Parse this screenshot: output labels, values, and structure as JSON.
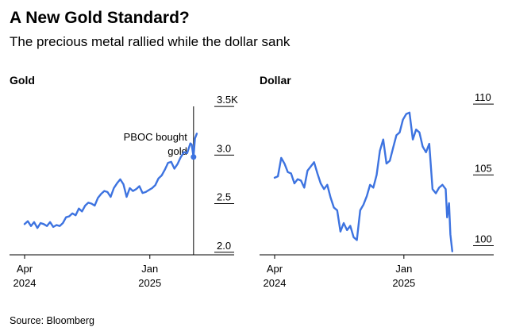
{
  "header": {
    "title": "A New Gold Standard?",
    "subtitle": "The precious metal rallied while the dollar sank"
  },
  "source": "Source: Bloomberg",
  "colors": {
    "line": "#3d73e0",
    "axis": "#000000",
    "text": "#000000"
  },
  "chart_data": [
    {
      "type": "line",
      "title": "Gold",
      "x_ticks": [
        {
          "date": "2024-04-01",
          "label": [
            "Apr",
            "2024"
          ]
        },
        {
          "date": "2025-01-01",
          "label": [
            "Jan",
            "2025"
          ]
        }
      ],
      "y_ticks": [
        {
          "value": 2.0,
          "label": "2.0"
        },
        {
          "value": 2.5,
          "label": "2.5"
        },
        {
          "value": 3.0,
          "label": "3.0"
        },
        {
          "value": 3.5,
          "label": "3.5K"
        }
      ],
      "xlim": [
        "2024-04-01",
        "2025-04-16"
      ],
      "ylim": [
        1.9,
        3.55
      ],
      "annotation": {
        "date": "2025-04-07",
        "value": 2.98,
        "lines": [
          "PBOC bought",
          "gold"
        ]
      },
      "series": [
        {
          "points": [
            [
              "2024-04-01",
              2.29
            ],
            [
              "2024-04-08",
              2.32
            ],
            [
              "2024-04-15",
              2.27
            ],
            [
              "2024-04-22",
              2.31
            ],
            [
              "2024-04-29",
              2.25
            ],
            [
              "2024-05-06",
              2.3
            ],
            [
              "2024-05-13",
              2.29
            ],
            [
              "2024-05-20",
              2.27
            ],
            [
              "2024-05-27",
              2.31
            ],
            [
              "2024-06-03",
              2.26
            ],
            [
              "2024-06-10",
              2.28
            ],
            [
              "2024-06-17",
              2.27
            ],
            [
              "2024-06-24",
              2.3
            ],
            [
              "2024-07-01",
              2.36
            ],
            [
              "2024-07-08",
              2.37
            ],
            [
              "2024-07-15",
              2.4
            ],
            [
              "2024-07-22",
              2.38
            ],
            [
              "2024-07-29",
              2.45
            ],
            [
              "2024-08-05",
              2.42
            ],
            [
              "2024-08-12",
              2.48
            ],
            [
              "2024-08-19",
              2.51
            ],
            [
              "2024-08-26",
              2.5
            ],
            [
              "2024-09-02",
              2.48
            ],
            [
              "2024-09-09",
              2.56
            ],
            [
              "2024-09-16",
              2.6
            ],
            [
              "2024-09-23",
              2.63
            ],
            [
              "2024-09-30",
              2.62
            ],
            [
              "2024-10-07",
              2.57
            ],
            [
              "2024-10-14",
              2.66
            ],
            [
              "2024-10-21",
              2.71
            ],
            [
              "2024-10-28",
              2.75
            ],
            [
              "2024-11-04",
              2.7
            ],
            [
              "2024-11-11",
              2.57
            ],
            [
              "2024-11-18",
              2.66
            ],
            [
              "2024-11-25",
              2.63
            ],
            [
              "2024-12-02",
              2.65
            ],
            [
              "2024-12-09",
              2.68
            ],
            [
              "2024-12-16",
              2.61
            ],
            [
              "2024-12-23",
              2.62
            ],
            [
              "2024-12-30",
              2.64
            ],
            [
              "2025-01-06",
              2.66
            ],
            [
              "2025-01-13",
              2.69
            ],
            [
              "2025-01-20",
              2.76
            ],
            [
              "2025-01-27",
              2.79
            ],
            [
              "2025-02-03",
              2.85
            ],
            [
              "2025-02-10",
              2.92
            ],
            [
              "2025-02-17",
              2.93
            ],
            [
              "2025-02-24",
              2.86
            ],
            [
              "2025-03-03",
              2.91
            ],
            [
              "2025-03-10",
              2.98
            ],
            [
              "2025-03-17",
              3.03
            ],
            [
              "2025-03-24",
              3.02
            ],
            [
              "2025-03-31",
              3.12
            ],
            [
              "2025-04-03",
              3.11
            ],
            [
              "2025-04-07",
              2.98
            ],
            [
              "2025-04-10",
              3.17
            ],
            [
              "2025-04-14",
              3.22
            ]
          ]
        }
      ]
    },
    {
      "type": "line",
      "title": "Dollar",
      "x_ticks": [
        {
          "date": "2024-04-01",
          "label": [
            "Apr",
            "2024"
          ]
        },
        {
          "date": "2025-01-01",
          "label": [
            "Jan",
            "2025"
          ]
        }
      ],
      "y_ticks": [
        {
          "value": 100,
          "label": "100"
        },
        {
          "value": 105,
          "label": "105"
        },
        {
          "value": 110,
          "label": "110"
        }
      ],
      "xlim": [
        "2024-04-01",
        "2025-04-16"
      ],
      "ylim": [
        99.3,
        110.4
      ],
      "series": [
        {
          "points": [
            [
              "2024-04-01",
              104.8
            ],
            [
              "2024-04-08",
              104.9
            ],
            [
              "2024-04-15",
              106.2
            ],
            [
              "2024-04-22",
              105.8
            ],
            [
              "2024-04-29",
              105.2
            ],
            [
              "2024-05-06",
              105.1
            ],
            [
              "2024-05-13",
              104.4
            ],
            [
              "2024-05-20",
              104.7
            ],
            [
              "2024-05-27",
              104.6
            ],
            [
              "2024-06-03",
              104.1
            ],
            [
              "2024-06-10",
              105.3
            ],
            [
              "2024-06-17",
              105.6
            ],
            [
              "2024-06-24",
              105.9
            ],
            [
              "2024-07-01",
              105.1
            ],
            [
              "2024-07-08",
              104.4
            ],
            [
              "2024-07-15",
              104.0
            ],
            [
              "2024-07-22",
              104.3
            ],
            [
              "2024-07-29",
              103.4
            ],
            [
              "2024-08-05",
              102.7
            ],
            [
              "2024-08-12",
              102.5
            ],
            [
              "2024-08-19",
              101.0
            ],
            [
              "2024-08-26",
              101.6
            ],
            [
              "2024-09-02",
              101.1
            ],
            [
              "2024-09-09",
              101.4
            ],
            [
              "2024-09-16",
              100.6
            ],
            [
              "2024-09-23",
              100.4
            ],
            [
              "2024-09-30",
              102.5
            ],
            [
              "2024-10-07",
              102.9
            ],
            [
              "2024-10-14",
              103.5
            ],
            [
              "2024-10-21",
              104.3
            ],
            [
              "2024-10-28",
              104.1
            ],
            [
              "2024-11-04",
              105.0
            ],
            [
              "2024-11-11",
              106.7
            ],
            [
              "2024-11-18",
              107.5
            ],
            [
              "2024-11-25",
              105.8
            ],
            [
              "2024-12-02",
              106.0
            ],
            [
              "2024-12-09",
              106.9
            ],
            [
              "2024-12-16",
              107.8
            ],
            [
              "2024-12-23",
              108.0
            ],
            [
              "2024-12-30",
              108.9
            ],
            [
              "2025-01-06",
              109.3
            ],
            [
              "2025-01-13",
              109.4
            ],
            [
              "2025-01-20",
              107.5
            ],
            [
              "2025-01-27",
              108.2
            ],
            [
              "2025-02-03",
              108.0
            ],
            [
              "2025-02-10",
              107.0
            ],
            [
              "2025-02-17",
              106.6
            ],
            [
              "2025-02-24",
              107.2
            ],
            [
              "2025-03-03",
              104.0
            ],
            [
              "2025-03-10",
              103.7
            ],
            [
              "2025-03-17",
              104.1
            ],
            [
              "2025-03-24",
              104.3
            ],
            [
              "2025-03-31",
              104.0
            ],
            [
              "2025-04-03",
              102.0
            ],
            [
              "2025-04-07",
              103.0
            ],
            [
              "2025-04-10",
              100.8
            ],
            [
              "2025-04-14",
              99.6
            ]
          ]
        }
      ]
    }
  ]
}
